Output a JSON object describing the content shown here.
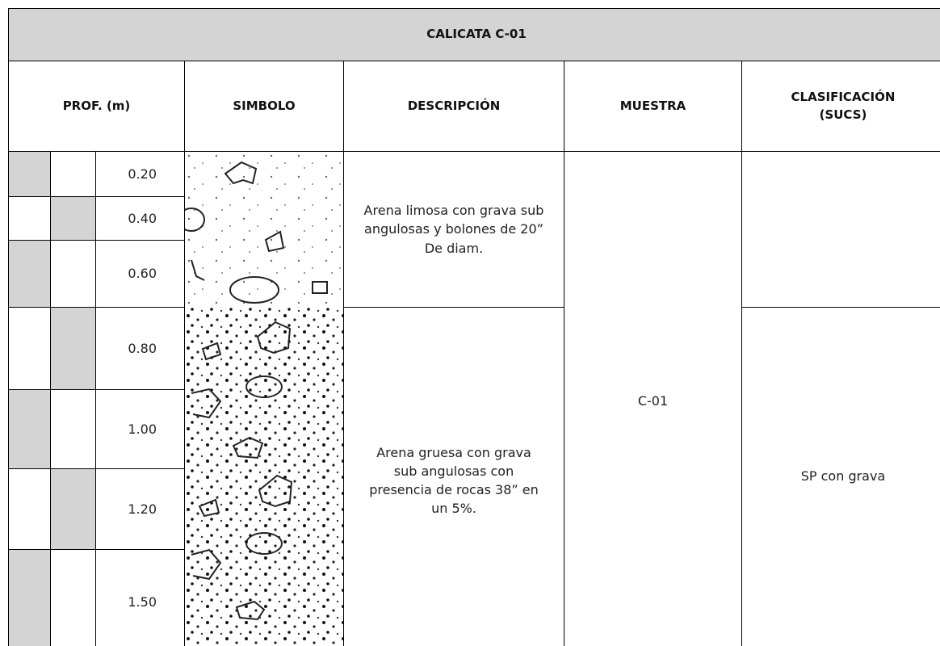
{
  "title": "CALICATA C-01",
  "headers": [
    "PROF. (m)",
    "SIMBOLO",
    "DESCRIPCIÓN",
    "MUESTRA",
    "CLASIFICACIÓN (SUCS)"
  ],
  "depths": [
    "0.20",
    "0.40",
    "0.60",
    "0.80",
    "1.00",
    "1.20",
    "1.50"
  ],
  "descriptions": [
    "Arena limosa con grava sub angulosas y bolones de 20” De diam.",
    "Arena gruesa con grava sub angulosas con presencia de rocas 38” en un 5%."
  ],
  "sample": "C-01",
  "classification": "SP con grava"
}
